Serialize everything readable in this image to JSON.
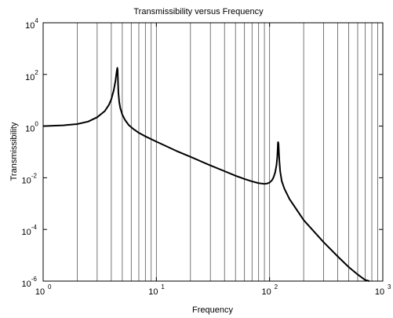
{
  "chart_data": {
    "type": "line",
    "title": "Transmissibility versus Frequency",
    "xlabel": "Frequency",
    "ylabel": "Transmissibility",
    "x_scale": "log",
    "y_scale": "log",
    "xlim": [
      1,
      1000
    ],
    "ylim": [
      1e-06,
      10000
    ],
    "grid": "vertical minor lines",
    "x_ticks": [
      {
        "value": 1,
        "base": "10",
        "exp": "0"
      },
      {
        "value": 10,
        "base": "10",
        "exp": "1"
      },
      {
        "value": 100,
        "base": "10",
        "exp": "2"
      },
      {
        "value": 1000,
        "base": "10",
        "exp": "3"
      }
    ],
    "y_ticks": [
      {
        "value": 1e-06,
        "base": "10",
        "exp": "-6"
      },
      {
        "value": 0.0001,
        "base": "10",
        "exp": "-4"
      },
      {
        "value": 0.01,
        "base": "10",
        "exp": "-2"
      },
      {
        "value": 1,
        "base": "10",
        "exp": "0"
      },
      {
        "value": 100,
        "base": "10",
        "exp": "2"
      },
      {
        "value": 10000,
        "base": "10",
        "exp": "4"
      }
    ],
    "series": [
      {
        "color": "#000000",
        "x": [
          1,
          1.5,
          2,
          2.5,
          3,
          3.5,
          3.8,
          4.0,
          4.2,
          4.35,
          4.45,
          4.52,
          4.55,
          4.58,
          4.62,
          4.7,
          4.8,
          5.0,
          5.3,
          5.7,
          6.2,
          7,
          8,
          10,
          15,
          20,
          30,
          40,
          50,
          60,
          70,
          80,
          90,
          95,
          100,
          105,
          108,
          112,
          115,
          117,
          118,
          118.5,
          119,
          120,
          121,
          122,
          124,
          128,
          135,
          150,
          200,
          300,
          400,
          500,
          600,
          700,
          760
        ],
        "y": [
          1.0,
          1.07,
          1.2,
          1.5,
          2.2,
          3.8,
          6.5,
          11,
          24,
          55,
          120,
          180,
          150,
          60,
          20,
          8.5,
          5.0,
          2.8,
          1.7,
          1.1,
          0.8,
          0.55,
          0.4,
          0.25,
          0.11,
          0.065,
          0.03,
          0.018,
          0.012,
          0.009,
          0.0072,
          0.0062,
          0.0058,
          0.006,
          0.0065,
          0.008,
          0.01,
          0.016,
          0.03,
          0.065,
          0.14,
          0.22,
          0.24,
          0.2,
          0.09,
          0.045,
          0.018,
          0.0075,
          0.0038,
          0.0015,
          0.00023,
          3.2e-05,
          9e-06,
          3.5e-06,
          1.8e-06,
          1.1e-06,
          9e-07
        ]
      }
    ]
  }
}
